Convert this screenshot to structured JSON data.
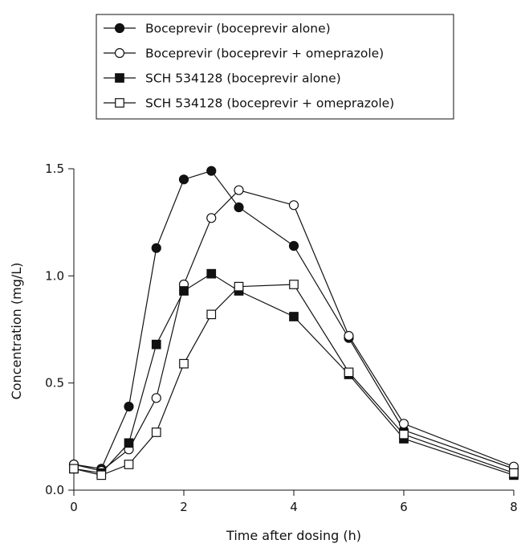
{
  "chart_data": {
    "type": "line",
    "title": "",
    "xlabel": "Time after dosing (h)",
    "ylabel": "Concentration (mg/L)",
    "xlim": [
      0,
      8
    ],
    "ylim": [
      0,
      1.5
    ],
    "xticks": [
      "0",
      "2",
      "4",
      "6",
      "8"
    ],
    "yticks": [
      "0.0",
      "0.5",
      "1.0",
      "1.5"
    ],
    "grid": false,
    "legend_position": "top-center",
    "series": [
      {
        "name": "Boceprevir (boceprevir alone)",
        "marker": "circle-filled",
        "x": [
          0,
          0.5,
          1,
          1.5,
          2,
          2.5,
          3,
          4,
          5,
          6,
          8
        ],
        "y": [
          0.12,
          0.1,
          0.39,
          1.13,
          1.45,
          1.49,
          1.32,
          1.14,
          0.71,
          0.28,
          0.1
        ]
      },
      {
        "name": "Boceprevir (boceprevir + omeprazole)",
        "marker": "circle-open",
        "x": [
          0,
          0.5,
          1,
          1.5,
          2,
          2.5,
          3,
          4,
          5,
          6,
          8
        ],
        "y": [
          0.12,
          0.09,
          0.19,
          0.43,
          0.96,
          1.27,
          1.4,
          1.33,
          0.72,
          0.31,
          0.11
        ]
      },
      {
        "name": "SCH 534128 (boceprevir alone)",
        "marker": "square-filled",
        "x": [
          0,
          0.5,
          1,
          1.5,
          2,
          2.5,
          3,
          4,
          5,
          6,
          8
        ],
        "y": [
          0.1,
          0.08,
          0.22,
          0.68,
          0.93,
          1.01,
          0.93,
          0.81,
          0.54,
          0.24,
          0.07
        ]
      },
      {
        "name": "SCH 534128 (boceprevir + omeprazole)",
        "marker": "square-open",
        "x": [
          0,
          0.5,
          1,
          1.5,
          2,
          2.5,
          3,
          4,
          5,
          6,
          8
        ],
        "y": [
          0.1,
          0.07,
          0.12,
          0.27,
          0.59,
          0.82,
          0.95,
          0.96,
          0.55,
          0.26,
          0.08
        ]
      }
    ]
  }
}
